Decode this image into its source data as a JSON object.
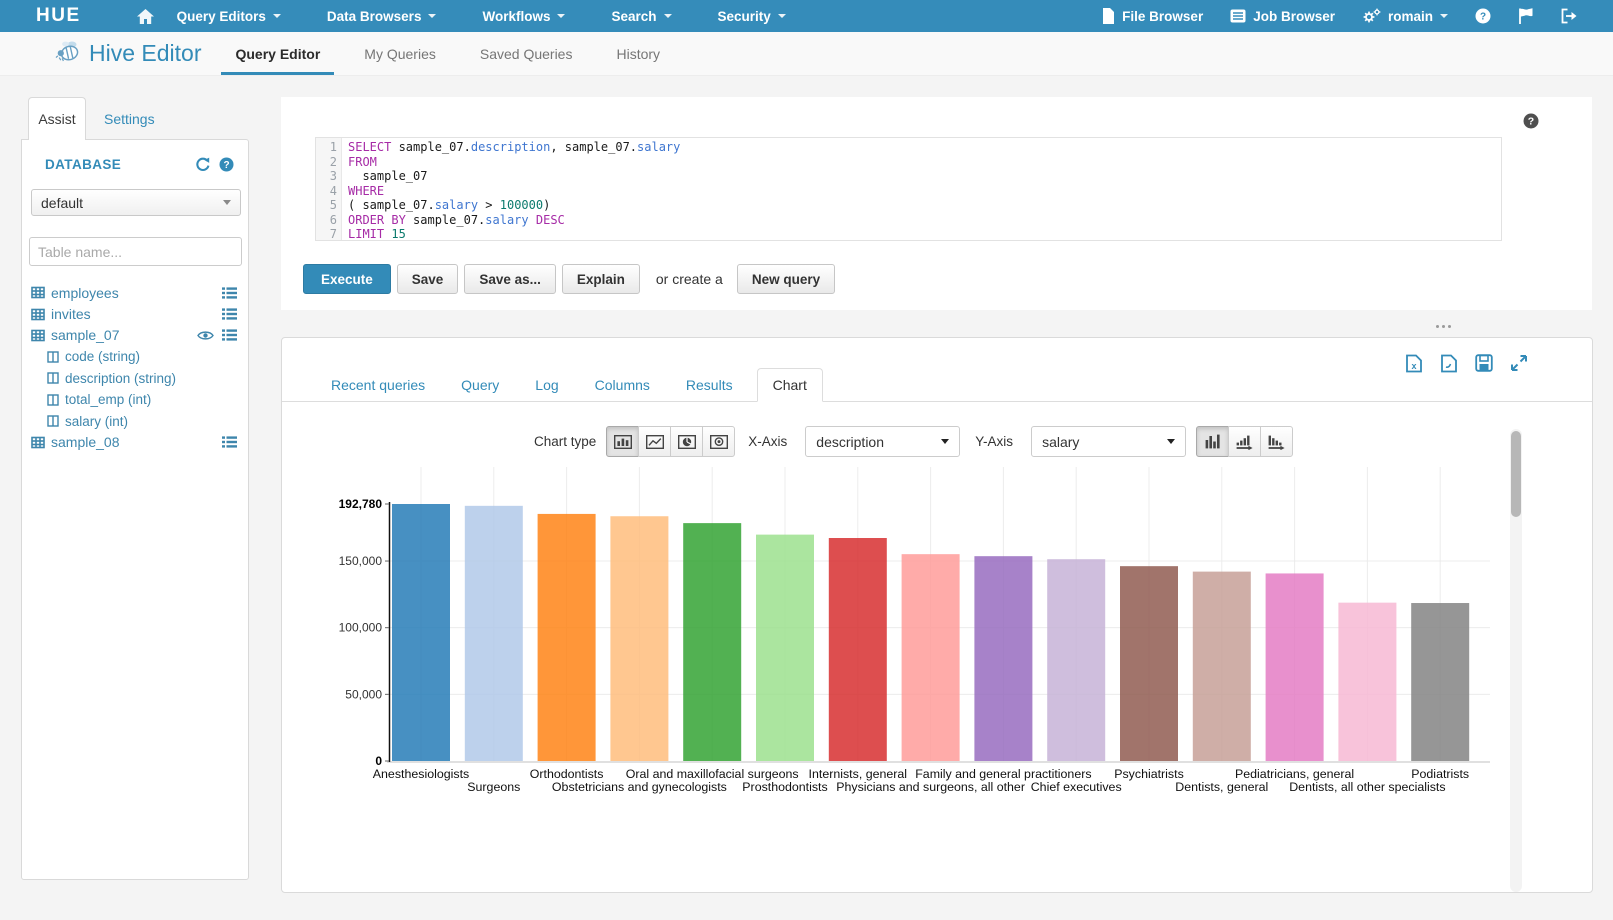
{
  "theme": {
    "accent": "#338bb8"
  },
  "navbar": {
    "logo": "HUE",
    "menus": [
      {
        "label": "Query Editors"
      },
      {
        "label": "Data Browsers"
      },
      {
        "label": "Workflows"
      },
      {
        "label": "Search"
      },
      {
        "label": "Security"
      }
    ],
    "file_browser": "File Browser",
    "job_browser": "Job Browser",
    "user": "romain"
  },
  "header": {
    "app_title": "Hive Editor",
    "tabs": [
      {
        "label": "Query Editor",
        "active": true
      },
      {
        "label": "My Queries",
        "active": false
      },
      {
        "label": "Saved Queries",
        "active": false
      },
      {
        "label": "History",
        "active": false
      }
    ]
  },
  "sidebar": {
    "tabs": [
      {
        "label": "Assist",
        "active": true
      },
      {
        "label": "Settings",
        "active": false
      }
    ],
    "database_label": "DATABASE",
    "database_value": "default",
    "table_filter_placeholder": "Table name...",
    "tables": [
      {
        "name": "employees",
        "eye": false,
        "columns": []
      },
      {
        "name": "invites",
        "eye": false,
        "columns": []
      },
      {
        "name": "sample_07",
        "eye": true,
        "columns": [
          "code (string)",
          "description (string)",
          "total_emp (int)",
          "salary (int)"
        ]
      },
      {
        "name": "sample_08",
        "eye": false,
        "columns": []
      }
    ]
  },
  "editor": {
    "lines": [
      [
        [
          "kw",
          "SELECT"
        ],
        [
          "pl",
          " sample_07."
        ],
        [
          "at",
          "description"
        ],
        [
          "pl",
          ", sample_07."
        ],
        [
          "at",
          "salary"
        ]
      ],
      [
        [
          "kw",
          "FROM"
        ]
      ],
      [
        [
          "pl",
          "  sample_07"
        ]
      ],
      [
        [
          "kw",
          "WHERE"
        ]
      ],
      [
        [
          "pl",
          "( sample_07."
        ],
        [
          "at",
          "salary"
        ],
        [
          "pl",
          " > "
        ],
        [
          "num",
          "100000"
        ],
        [
          "pl",
          ")"
        ]
      ],
      [
        [
          "kw",
          "ORDER BY"
        ],
        [
          "pl",
          " sample_07."
        ],
        [
          "at",
          "salary"
        ],
        [
          "pl",
          " "
        ],
        [
          "kw",
          "DESC"
        ]
      ],
      [
        [
          "kw",
          "LIMIT"
        ],
        [
          "pl",
          " "
        ],
        [
          "num",
          "15"
        ]
      ]
    ]
  },
  "actions": {
    "execute": "Execute",
    "save": "Save",
    "save_as": "Save as...",
    "explain": "Explain",
    "or_create": "or create a",
    "new_query": "New query"
  },
  "results": {
    "tabs": [
      "Recent queries",
      "Query",
      "Log",
      "Columns",
      "Results",
      "Chart"
    ],
    "active_tab": "Chart"
  },
  "chart_controls": {
    "chart_type_label": "Chart type",
    "x_axis_label": "X-Axis",
    "x_axis_value": "description",
    "y_axis_label": "Y-Axis",
    "y_axis_value": "salary"
  },
  "chart_data": {
    "type": "bar",
    "title": "",
    "xlabel": "description",
    "ylabel": "salary",
    "categories": [
      "Anesthesiologists",
      "Surgeons",
      "Orthodontists",
      "Obstetricians and gynecologists",
      "Oral and maxillofacial surgeons",
      "Prosthodontists",
      "Internists, general",
      "Physicians and surgeons, all other",
      "Family and general practitioners",
      "Chief executives",
      "Psychiatrists",
      "Dentists, general",
      "Pediatricians, general",
      "Dentists, all other specialists",
      "Podiatrists"
    ],
    "values": [
      192780,
      191410,
      185340,
      183600,
      178440,
      169810,
      167270,
      155150,
      153640,
      151370,
      146150,
      142070,
      140690,
      118790,
      118500
    ],
    "colors": [
      "#1f77b4",
      "#aec7e8",
      "#ff7f0e",
      "#ffbb78",
      "#2ca02c",
      "#98df8a",
      "#d62728",
      "#ff9896",
      "#9467bd",
      "#c5b0d5",
      "#8c564b",
      "#c49c94",
      "#e377c2",
      "#f7b6d2",
      "#7f7f7f"
    ],
    "ylim": [
      0,
      192780
    ],
    "y_ticks": [
      {
        "value": 0,
        "label": "0",
        "bold": true
      },
      {
        "value": 50000,
        "label": "50,000",
        "bold": false
      },
      {
        "value": 100000,
        "label": "100,000",
        "bold": false
      },
      {
        "value": 150000,
        "label": "150,000",
        "bold": false
      },
      {
        "value": 192780,
        "label": "192,780",
        "bold": true
      }
    ],
    "grid": true,
    "legend": "none"
  }
}
